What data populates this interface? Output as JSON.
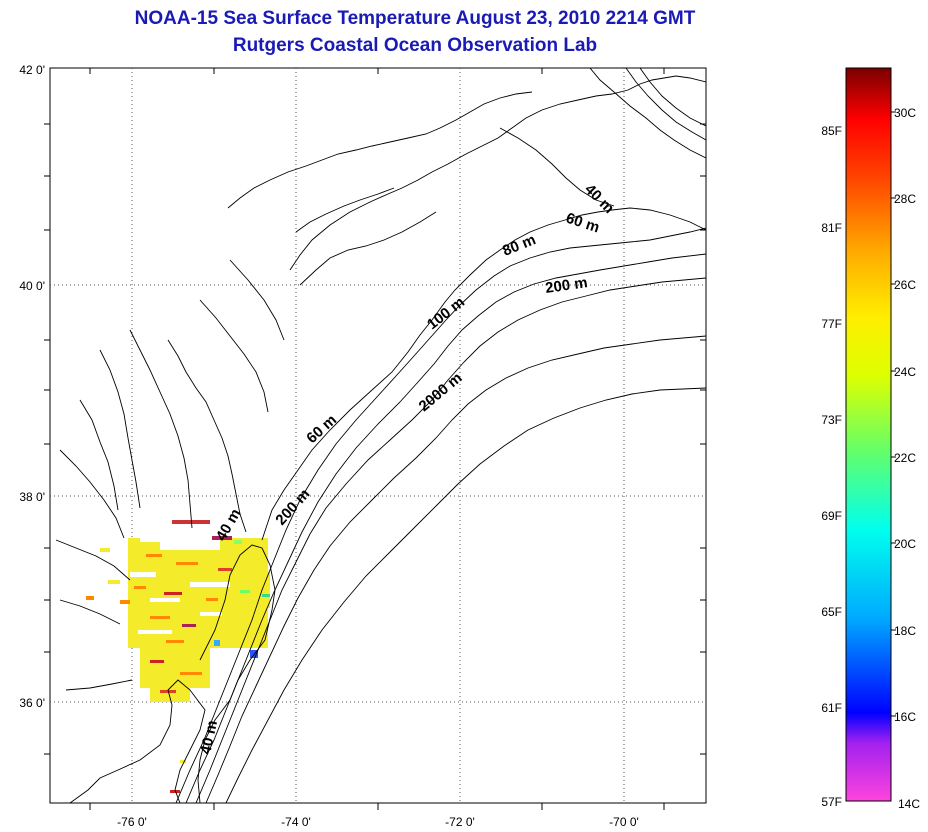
{
  "header": {
    "title": "NOAA-15 Sea Surface Temperature August 23, 2010 2214 GMT",
    "subtitle": "Rutgers Coastal Ocean Observation Lab"
  },
  "map": {
    "lat_labels": [
      "42 0'",
      "40 0'",
      "38 0'",
      "36 0'"
    ],
    "lon_labels": [
      "-76 0'",
      "-74 0'",
      "-72 0'",
      "-70 0'"
    ],
    "isobath_labels": [
      "40 m",
      "60 m",
      "80 m",
      "200 m",
      "100 m",
      "2000 m",
      "60 m",
      "40 m",
      "200 m",
      "40 m"
    ]
  },
  "colorbar": {
    "fahrenheit": [
      "85F",
      "81F",
      "77F",
      "73F",
      "69F",
      "65F",
      "61F",
      "57F"
    ],
    "celsius": [
      "30C",
      "28C",
      "26C",
      "24C",
      "22C",
      "20C",
      "18C",
      "16C",
      "14C"
    ]
  },
  "colors": {
    "title": "#1a1ab4",
    "coast": "#000000",
    "grid": "#555555"
  }
}
